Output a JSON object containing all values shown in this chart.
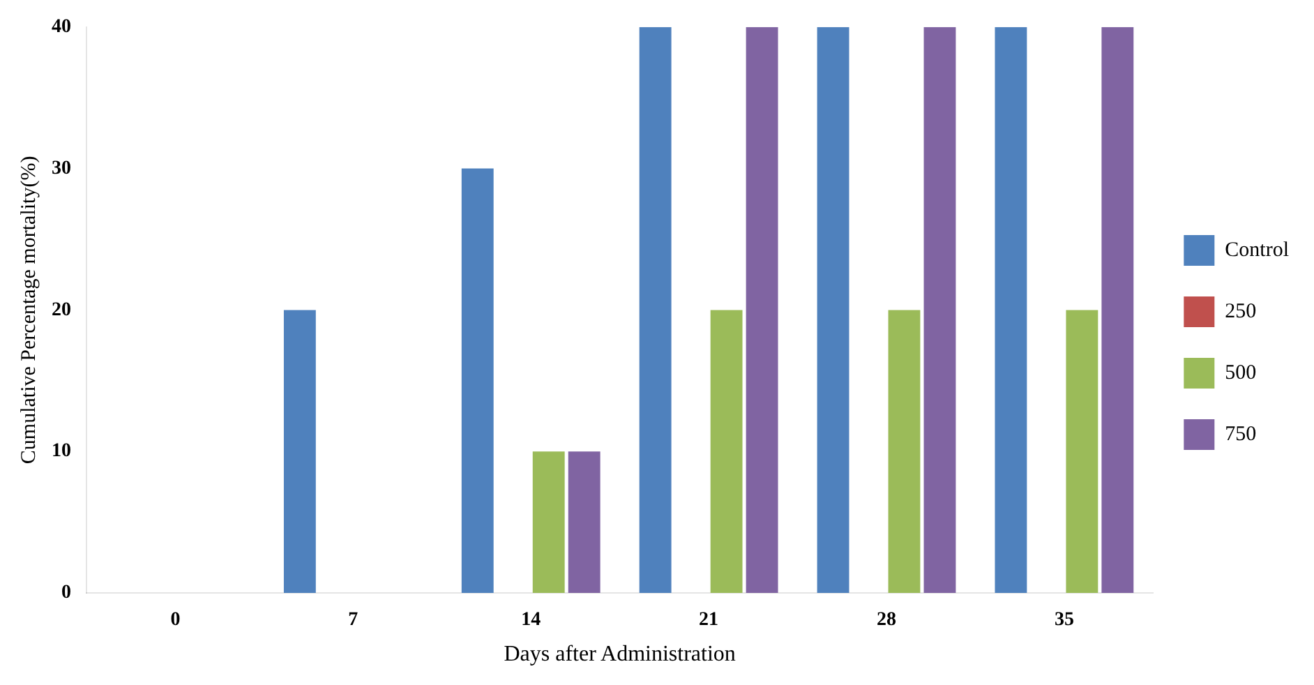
{
  "chart_data": {
    "type": "bar",
    "xlabel": "Days after Administration",
    "ylabel": "Cumulative Percentage mortality(%)",
    "categories": [
      "0",
      "7",
      "14",
      "21",
      "28",
      "35"
    ],
    "series": [
      {
        "name": "Control",
        "color": "#4f81bd",
        "values": [
          0,
          20,
          30,
          40,
          40,
          40
        ]
      },
      {
        "name": "250",
        "color": "#c0504d",
        "values": [
          0,
          0,
          0,
          0,
          0,
          0
        ]
      },
      {
        "name": "500",
        "color": "#9bbb59",
        "values": [
          0,
          0,
          10,
          20,
          20,
          20
        ]
      },
      {
        "name": "750",
        "color": "#8064a2",
        "values": [
          0,
          0,
          10,
          40,
          40,
          40
        ]
      }
    ],
    "ylim": [
      0,
      40
    ],
    "yticks": [
      0,
      10,
      20,
      30,
      40
    ],
    "grid": false,
    "legend": "right"
  }
}
